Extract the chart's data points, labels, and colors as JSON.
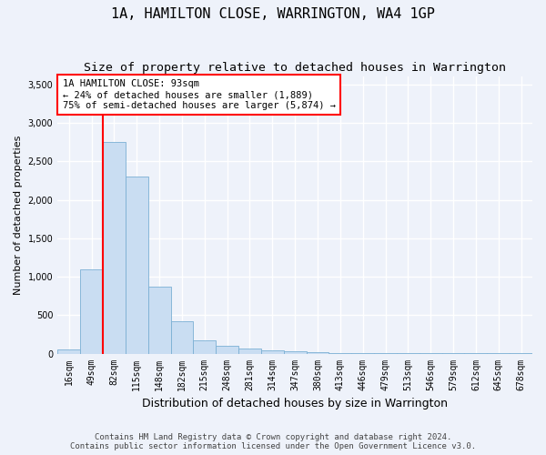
{
  "title": "1A, HAMILTON CLOSE, WARRINGTON, WA4 1GP",
  "subtitle": "Size of property relative to detached houses in Warrington",
  "xlabel": "Distribution of detached houses by size in Warrington",
  "ylabel": "Number of detached properties",
  "bar_labels": [
    "16sqm",
    "49sqm",
    "82sqm",
    "115sqm",
    "148sqm",
    "182sqm",
    "215sqm",
    "248sqm",
    "281sqm",
    "314sqm",
    "347sqm",
    "380sqm",
    "413sqm",
    "446sqm",
    "479sqm",
    "513sqm",
    "546sqm",
    "579sqm",
    "612sqm",
    "645sqm",
    "678sqm"
  ],
  "bar_values": [
    50,
    1100,
    2750,
    2300,
    875,
    420,
    175,
    100,
    65,
    40,
    25,
    15,
    10,
    6,
    4,
    3,
    2,
    2,
    1,
    1,
    1
  ],
  "bar_color": "#c9ddf2",
  "bar_edge_color": "#7bafd4",
  "vline_x": 1.5,
  "annotation_text": "1A HAMILTON CLOSE: 93sqm\n← 24% of detached houses are smaller (1,889)\n75% of semi-detached houses are larger (5,874) →",
  "annotation_box_color": "white",
  "annotation_box_edge_color": "red",
  "vline_color": "red",
  "ylim": [
    0,
    3600
  ],
  "yticks": [
    0,
    500,
    1000,
    1500,
    2000,
    2500,
    3000,
    3500
  ],
  "footer_line1": "Contains HM Land Registry data © Crown copyright and database right 2024.",
  "footer_line2": "Contains public sector information licensed under the Open Government Licence v3.0.",
  "background_color": "#eef2fa",
  "grid_color": "white",
  "title_fontsize": 11,
  "subtitle_fontsize": 9.5,
  "xlabel_fontsize": 9,
  "ylabel_fontsize": 8,
  "tick_fontsize": 7,
  "annotation_fontsize": 7.5,
  "footer_fontsize": 6.5
}
